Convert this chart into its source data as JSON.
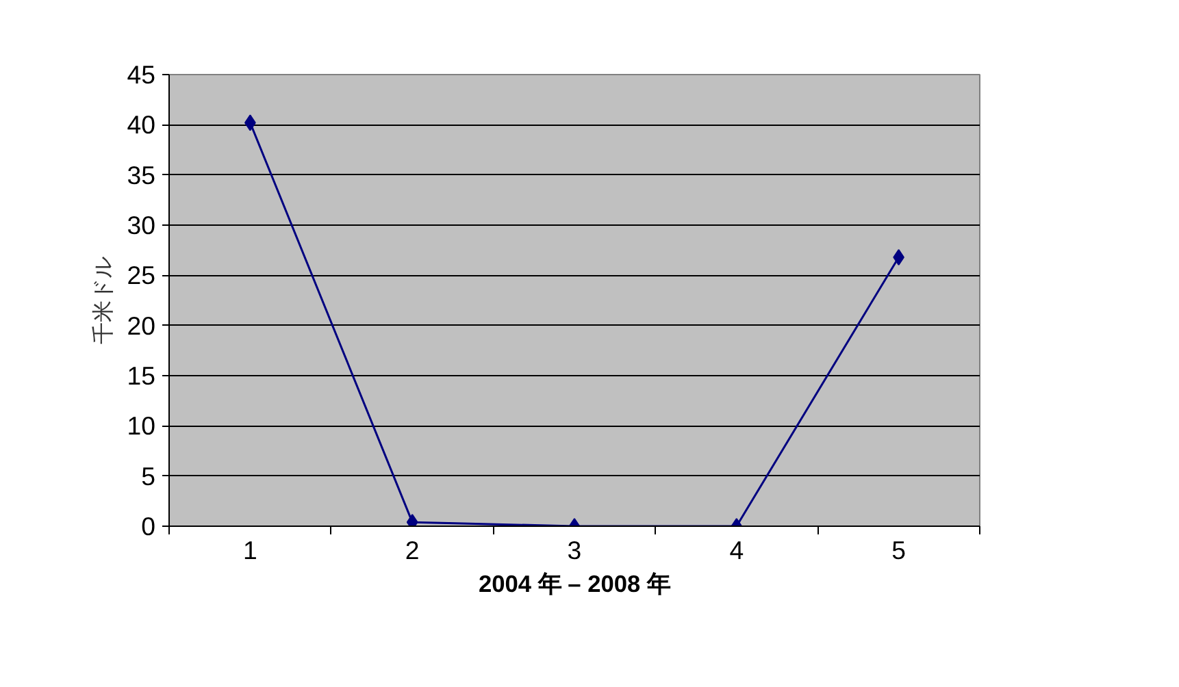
{
  "chart_data": {
    "type": "line",
    "xlabel": "2004 年 – 2008 年",
    "ylabel": "千米ドル",
    "categories": [
      "1",
      "2",
      "3",
      "4",
      "5"
    ],
    "series": [
      {
        "color": "#000080",
        "values": [
          40.2,
          0.4,
          0,
          0,
          26.8
        ]
      }
    ],
    "ylim": [
      0,
      45
    ],
    "yticks": [
      0,
      5,
      10,
      15,
      20,
      25,
      30,
      35,
      40,
      45
    ],
    "grid": "y",
    "marker": "diamond",
    "line_style": "solid"
  }
}
